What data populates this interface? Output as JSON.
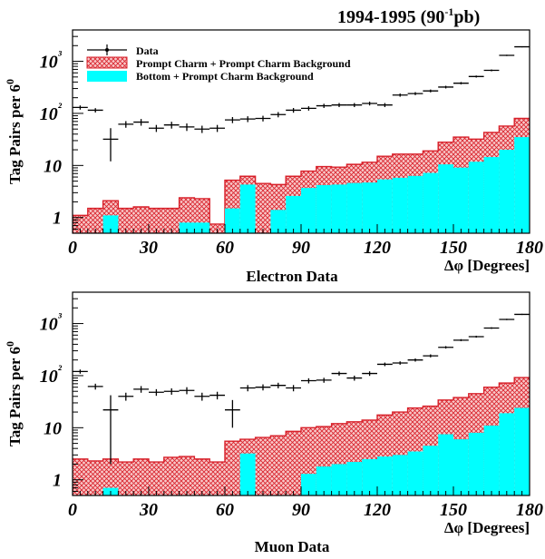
{
  "header": {
    "title": "1994-1995 (90",
    "title_sup": "-1",
    "title_tail": "pb)"
  },
  "legend": {
    "data": "Data",
    "charm": "Prompt Charm + Prompt Charm Background",
    "bottom": "Bottom + Prompt Charm Background"
  },
  "colors": {
    "charm_fill": "#f8c8c8",
    "charm_hatch": "#d8202a",
    "bottom_fill": "#00ffff",
    "data": "#000000"
  },
  "chart_data": [
    {
      "type": "bar",
      "title": "Electron Data",
      "xlabel": "Δφ [Degrees]",
      "ylabel": "Tag Pairs per 6°",
      "xlim": [
        0,
        180
      ],
      "ylim": [
        0.5,
        4000
      ],
      "log_y": true,
      "x_ticks": [
        "0",
        "30",
        "60",
        "90",
        "120",
        "150",
        "180"
      ],
      "y_ticks": [
        "1",
        "10",
        "10²",
        "10³"
      ],
      "bin_width": 6,
      "bin_centers": [
        3,
        9,
        15,
        21,
        27,
        33,
        39,
        45,
        51,
        57,
        63,
        69,
        75,
        81,
        87,
        93,
        99,
        105,
        111,
        117,
        123,
        129,
        135,
        141,
        147,
        153,
        159,
        165,
        171,
        177
      ],
      "series": [
        {
          "name": "Data",
          "values": [
            130,
            115,
            32,
            62,
            68,
            52,
            60,
            55,
            50,
            52,
            75,
            78,
            80,
            95,
            115,
            125,
            140,
            145,
            145,
            155,
            145,
            225,
            240,
            270,
            320,
            380,
            510,
            670,
            1300,
            1900
          ],
          "yerr": [
            12,
            11,
            20,
            9,
            10,
            8,
            9,
            9,
            8,
            8,
            10,
            10,
            10,
            11,
            12,
            12,
            13,
            13,
            13,
            13,
            13,
            16,
            16,
            17,
            19,
            20,
            23,
            27,
            36,
            44
          ]
        },
        {
          "name": "Prompt Charm + Prompt Charm Background",
          "values": [
            1.1,
            1.5,
            2.1,
            1.5,
            1.6,
            1.5,
            1.5,
            2.4,
            2.3,
            0.75,
            5.2,
            6.2,
            4.5,
            4.3,
            6.2,
            7.8,
            9.5,
            9.3,
            10.5,
            11.5,
            15,
            16.5,
            16.5,
            19,
            28,
            35,
            32,
            43,
            57,
            80
          ]
        },
        {
          "name": "Bottom + Prompt Charm Background",
          "values": [
            0.5,
            0.5,
            1.1,
            0.5,
            0.5,
            0.5,
            0.5,
            0.8,
            0.8,
            0.5,
            1.5,
            4.3,
            0.5,
            1.4,
            2.6,
            3.7,
            4.2,
            4.3,
            4.6,
            4.7,
            5.4,
            5.8,
            6.3,
            7.2,
            10.5,
            9.1,
            11.8,
            14.5,
            20,
            35
          ]
        }
      ]
    },
    {
      "type": "bar",
      "title": "Muon Data",
      "xlabel": "Δφ [Degrees]",
      "ylabel": "Tag Pairs per 6°",
      "xlim": [
        0,
        180
      ],
      "ylim": [
        0.5,
        4000
      ],
      "log_y": true,
      "x_ticks": [
        "0",
        "30",
        "60",
        "90",
        "120",
        "150",
        "180"
      ],
      "y_ticks": [
        "1",
        "10",
        "10²",
        "10³"
      ],
      "bin_width": 6,
      "bin_centers": [
        3,
        9,
        15,
        21,
        27,
        33,
        39,
        45,
        51,
        57,
        63,
        69,
        75,
        81,
        87,
        93,
        99,
        105,
        111,
        117,
        123,
        129,
        135,
        141,
        147,
        153,
        159,
        165,
        171,
        177
      ],
      "series": [
        {
          "name": "Data",
          "values": [
            120,
            62,
            22,
            40,
            55,
            48,
            50,
            52,
            40,
            42,
            22,
            58,
            60,
            65,
            58,
            80,
            82,
            110,
            90,
            110,
            165,
            175,
            200,
            240,
            350,
            480,
            560,
            820,
            1200,
            1500
          ],
          "yerr": [
            11,
            8,
            20,
            7,
            8,
            7,
            7,
            8,
            7,
            7,
            12,
            8,
            8,
            8,
            8,
            9,
            9,
            10,
            10,
            11,
            13,
            13,
            14,
            16,
            19,
            22,
            24,
            29,
            35,
            39
          ]
        },
        {
          "name": "Prompt Charm + Prompt Charm Background",
          "values": [
            2.5,
            2.3,
            2.5,
            2.2,
            2.5,
            2.2,
            2.7,
            2.8,
            2.5,
            2.2,
            5.5,
            6,
            6.5,
            7,
            8.5,
            10,
            10.5,
            12,
            13,
            14,
            17.5,
            20,
            24,
            26,
            34,
            38,
            45,
            60,
            72,
            92
          ]
        },
        {
          "name": "Bottom + Prompt Charm Background",
          "values": [
            0.4,
            0.4,
            0.7,
            0.4,
            0.4,
            0.4,
            0.4,
            0.4,
            0.4,
            0.4,
            0.4,
            3.2,
            0.4,
            0.4,
            0.4,
            1.3,
            1.8,
            2,
            2.2,
            2.5,
            2.8,
            3,
            3.5,
            4.5,
            7.5,
            6,
            8,
            11,
            19,
            24
          ]
        }
      ]
    }
  ]
}
